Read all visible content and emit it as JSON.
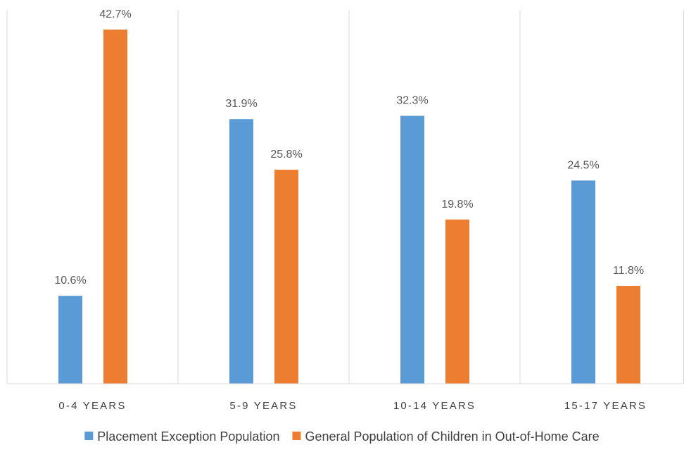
{
  "chart_data": {
    "type": "bar",
    "title": "",
    "xlabel": "",
    "ylabel": "",
    "ylim": [
      0,
      45
    ],
    "grid": "vertical category separators",
    "legend_position": "bottom",
    "categories": [
      "0-4 YEARS",
      "5-9 YEARS",
      "10-14 YEARS",
      "15-17 YEARS"
    ],
    "series": [
      {
        "name": "Placement Exception Population",
        "color": "#5B9BD5",
        "values": [
          10.6,
          31.9,
          32.3,
          24.5
        ],
        "labels": [
          "10.6%",
          "31.9%",
          "32.3%",
          "24.5%"
        ]
      },
      {
        "name": "General Population of Children in Out-of-Home Care",
        "color": "#ED7D31",
        "values": [
          42.7,
          25.8,
          19.8,
          11.8
        ],
        "labels": [
          "42.7%",
          "25.8%",
          "19.8%",
          "11.8%"
        ]
      }
    ]
  }
}
